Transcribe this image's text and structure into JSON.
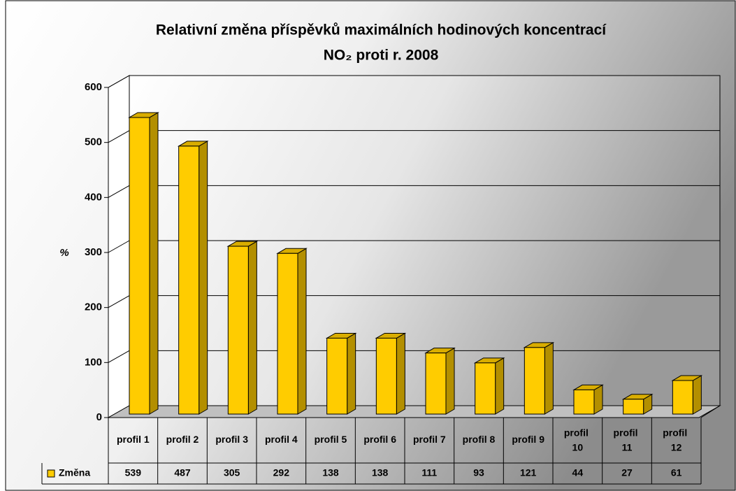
{
  "chart_data": {
    "type": "bar",
    "title": [
      "Relativní změna příspěvků maximálních hodinových koncentrací",
      "NO₂ proti r. 2008"
    ],
    "y_label": "%",
    "categories": [
      "profil 1",
      "profil 2",
      "profil 3",
      "profil 4",
      "profil 5",
      "profil 6",
      "profil 7",
      "profil 8",
      "profil 9",
      "profil 10",
      "profil 11",
      "profil 12"
    ],
    "series": [
      {
        "name": "Změna",
        "color": "#FFCC00",
        "values": [
          539,
          487,
          305,
          292,
          138,
          138,
          111,
          93,
          121,
          44,
          27,
          61
        ]
      }
    ],
    "ylim": [
      0,
      600
    ],
    "yticks": [
      0,
      100,
      200,
      300,
      400,
      500,
      600
    ],
    "grid": true,
    "data_table": true
  }
}
